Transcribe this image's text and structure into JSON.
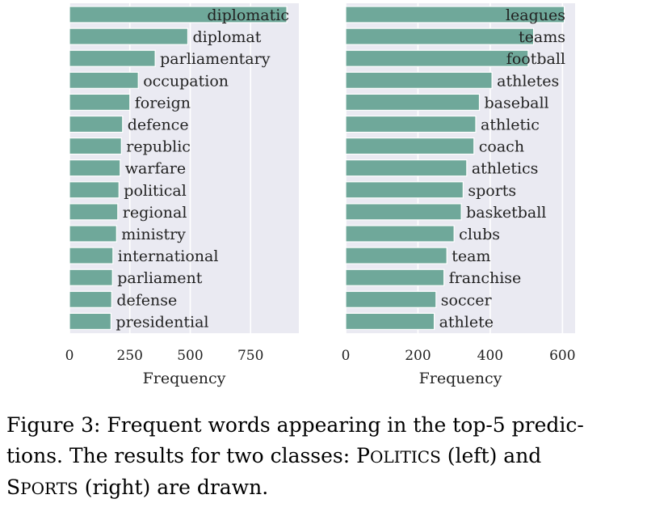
{
  "chart_data": [
    {
      "type": "bar",
      "orientation": "horizontal",
      "xlabel": "Frequency",
      "xlim": [
        0,
        950
      ],
      "xticks": [
        "0",
        "250",
        "500",
        "750"
      ],
      "grid": true,
      "categories": [
        "diplomatic",
        "diplomat",
        "parliamentary",
        "occupation",
        "foreign",
        "defence",
        "republic",
        "warfare",
        "political",
        "regional",
        "ministry",
        "international",
        "parliament",
        "defense",
        "presidential"
      ],
      "values": [
        900,
        490,
        355,
        285,
        250,
        220,
        215,
        210,
        205,
        200,
        195,
        180,
        178,
        175,
        172
      ],
      "bar_color": "#6fa89a",
      "background": "#eaeaf2"
    },
    {
      "type": "bar",
      "orientation": "horizontal",
      "xlabel": "Frequency",
      "xlim": [
        0,
        635
      ],
      "xticks": [
        "0",
        "200",
        "400",
        "600"
      ],
      "grid": true,
      "categories": [
        "leagues",
        "teams",
        "football",
        "athletes",
        "baseball",
        "athletic",
        "coach",
        "athletics",
        "sports",
        "basketball",
        "clubs",
        "team",
        "franchise",
        "soccer",
        "athlete"
      ],
      "values": [
        605,
        520,
        505,
        405,
        370,
        360,
        355,
        335,
        325,
        320,
        300,
        280,
        272,
        250,
        245
      ],
      "bar_color": "#6fa89a",
      "background": "#eaeaf2"
    }
  ],
  "caption": {
    "line1": "Figure 3: Frequent words appearing in the top-5 predic-",
    "line2_a": "tions.  The results for two classes: ",
    "politics_first": "P",
    "politics_rest": "OLITICS",
    "line2_b": " (left) and",
    "sports_first": "S",
    "sports_rest": "PORTS",
    "line3_b": " (right) are drawn."
  }
}
